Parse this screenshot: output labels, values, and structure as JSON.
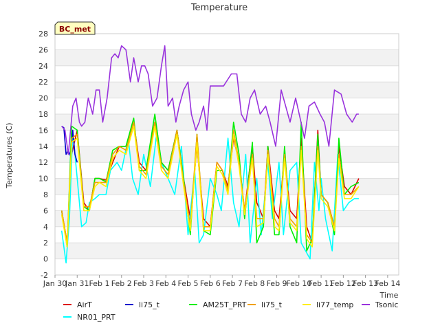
{
  "chart_data": {
    "type": "line",
    "title": "Temperature",
    "xlabel": "Time",
    "ylabel": "Temperatures (C)",
    "tag": "BC_met",
    "ylim": [
      -2,
      28
    ],
    "xlim": [
      0,
      15.5
    ],
    "x_ticks": [
      0,
      1,
      2,
      3,
      4,
      5,
      6,
      7,
      8,
      9,
      10,
      11,
      12,
      13,
      14,
      15
    ],
    "x_tick_labels": [
      "Jan 30",
      "Jan 31",
      "Feb 1",
      "Feb 2",
      "Feb 3",
      "Feb 4",
      "Feb 5",
      "Feb 6",
      "Feb 7",
      "Feb 8",
      "Feb 9",
      "Feb 10",
      "Feb 11",
      "Feb 12",
      "Feb 13",
      "Feb 14"
    ],
    "y_ticks": [
      -2,
      0,
      2,
      4,
      6,
      8,
      10,
      12,
      14,
      16,
      18,
      20,
      22,
      24,
      26,
      28
    ],
    "grid": "horizontal bands",
    "legend_position": "bottom",
    "series": [
      {
        "name": "AirT",
        "color": "#dd0000",
        "x": [
          0.3,
          0.55,
          0.75,
          1.0,
          1.3,
          1.55,
          1.8,
          2.0,
          2.3,
          2.6,
          2.9,
          3.2,
          3.55,
          3.8,
          4.1,
          4.5,
          4.8,
          5.1,
          5.5,
          5.8,
          6.1,
          6.4,
          6.7,
          7.0,
          7.3,
          7.55,
          7.8,
          8.05,
          8.3,
          8.55,
          8.9,
          9.1,
          9.4,
          9.6,
          9.9,
          10.1,
          10.35,
          10.6,
          10.9,
          11.1,
          11.35,
          11.6,
          11.85,
          12.0,
          12.3,
          12.6,
          12.8,
          13.05,
          13.35,
          13.7
        ],
        "y": [
          6,
          2,
          13,
          16,
          7,
          6,
          10,
          10,
          9.8,
          12,
          14,
          14,
          17,
          12,
          11,
          17,
          12,
          11,
          16,
          10,
          5,
          14,
          5,
          4,
          12,
          11,
          9,
          15,
          12,
          6,
          14,
          7,
          5,
          14,
          6,
          5,
          13,
          6,
          5,
          15,
          4,
          2,
          16,
          8,
          7,
          4,
          14,
          9,
          8,
          10
        ]
      },
      {
        "name": "NR01_PRT",
        "color": "#00ffff",
        "x": [
          0.3,
          0.5,
          0.65,
          0.8,
          1.0,
          1.2,
          1.4,
          1.55,
          1.8,
          2.0,
          2.3,
          2.5,
          2.8,
          3.0,
          3.3,
          3.5,
          3.75,
          4.0,
          4.3,
          4.6,
          4.8,
          5.1,
          5.4,
          5.7,
          6.0,
          6.3,
          6.5,
          6.7,
          7.0,
          7.3,
          7.5,
          7.8,
          8.05,
          8.3,
          8.6,
          8.8,
          9.1,
          9.3,
          9.6,
          9.8,
          10.1,
          10.3,
          10.6,
          10.9,
          11.1,
          11.3,
          11.5,
          11.7,
          11.9,
          12.0,
          12.2,
          12.5,
          12.75,
          13.0,
          13.25,
          13.5,
          13.7
        ],
        "y": [
          3.5,
          -0.5,
          5,
          16,
          10,
          4,
          4.5,
          7,
          7.5,
          8,
          8,
          11,
          12,
          11,
          15,
          10,
          8,
          13,
          9,
          16,
          12,
          10,
          8,
          14,
          3,
          11,
          2,
          3,
          10,
          8,
          6,
          15,
          7,
          4,
          13,
          2,
          10,
          3,
          12,
          5,
          12,
          3,
          11,
          12,
          2,
          1,
          0,
          12,
          6,
          10,
          5,
          1,
          13,
          6,
          7,
          7.5,
          7.5
        ]
      },
      {
        "name": "li75_t",
        "color": "#0000cc",
        "x": [
          0.3,
          0.4,
          0.5,
          0.6,
          0.7,
          0.8,
          0.9,
          1.0
        ],
        "y": [
          16.5,
          16.3,
          13,
          13.5,
          12.8,
          16,
          13,
          12
        ]
      },
      {
        "name": "AM25T_PRT",
        "color": "#00ee00",
        "x": [
          0.3,
          0.55,
          0.75,
          1.0,
          1.3,
          1.55,
          1.8,
          2.0,
          2.3,
          2.6,
          2.9,
          3.2,
          3.55,
          3.8,
          4.1,
          4.5,
          4.8,
          5.1,
          5.5,
          5.8,
          6.1,
          6.4,
          6.7,
          7.0,
          7.3,
          7.55,
          7.8,
          8.05,
          8.3,
          8.55,
          8.9,
          9.1,
          9.4,
          9.6,
          9.9,
          10.1,
          10.35,
          10.6,
          10.9,
          11.1,
          11.35,
          11.6,
          11.85,
          12.0,
          12.3,
          12.6,
          12.8,
          13.05,
          13.35,
          13.7
        ],
        "y": [
          6,
          1.5,
          16.5,
          16,
          6.5,
          6,
          10,
          10,
          9.6,
          13.5,
          14,
          14,
          17.5,
          11,
          11,
          18,
          12,
          11,
          16,
          10,
          3,
          15.5,
          3.5,
          3,
          11,
          11,
          8.5,
          17,
          13,
          5,
          14.5,
          2,
          4,
          14,
          3,
          3,
          14,
          4,
          2,
          17,
          1,
          2.5,
          15.5,
          8,
          7,
          3,
          15,
          8,
          9,
          9.5
        ]
      },
      {
        "name": "li75_t",
        "color": "#f0a000",
        "x": [
          0.3,
          0.55,
          0.75,
          1.0,
          1.3,
          1.55,
          1.8,
          2.0,
          2.3,
          2.6,
          2.9,
          3.2,
          3.55,
          3.8,
          4.1,
          4.5,
          4.8,
          5.1,
          5.5,
          5.8,
          6.1,
          6.4,
          6.7,
          7.0,
          7.3,
          7.55,
          7.8,
          8.05,
          8.3,
          8.55,
          8.9,
          9.1,
          9.4,
          9.6,
          9.9,
          10.1,
          10.35,
          10.6,
          10.9,
          11.1,
          11.35,
          11.6,
          11.85,
          12.0,
          12.3,
          12.6,
          12.8,
          13.05,
          13.35,
          13.7
        ],
        "y": [
          6,
          2,
          15,
          15.5,
          6.5,
          6.5,
          9.5,
          9.5,
          9.5,
          13,
          14,
          13.5,
          17,
          11.5,
          10.5,
          17,
          11.5,
          10.5,
          16,
          9.5,
          4,
          15.5,
          4,
          4,
          12,
          11,
          8.5,
          16,
          12,
          6,
          13,
          5,
          5,
          13.5,
          5,
          4,
          13,
          5,
          4,
          14,
          3,
          2,
          14,
          8,
          7,
          4,
          13,
          8,
          8,
          9
        ]
      },
      {
        "name": "li77_temp",
        "color": "#ffee00",
        "x": [
          0.3,
          0.55,
          0.75,
          1.0,
          1.3,
          1.55,
          1.8,
          2.0,
          2.3,
          2.6,
          2.9,
          3.2,
          3.55,
          3.8,
          4.1,
          4.5,
          4.8,
          5.1,
          5.5,
          5.8,
          6.1,
          6.4,
          6.7,
          7.0,
          7.3,
          7.55,
          7.8,
          8.05,
          8.3,
          8.55,
          8.9,
          9.1,
          9.4,
          9.6,
          9.9,
          10.1,
          10.35,
          10.6,
          10.9,
          11.1,
          11.35,
          11.6,
          11.85,
          12.0,
          12.3,
          12.6,
          12.8,
          13.05,
          13.35,
          13.7
        ],
        "y": [
          5.5,
          1.5,
          14.5,
          15,
          6,
          6,
          9,
          9.5,
          9,
          12.5,
          13.5,
          13,
          16.5,
          11,
          10,
          16.5,
          11,
          10,
          15.5,
          9,
          3.5,
          14.5,
          3.5,
          3.5,
          11.5,
          10.5,
          8,
          15.5,
          11.5,
          5.5,
          12.5,
          4,
          4.5,
          13,
          4,
          3.5,
          12.5,
          4.5,
          3.5,
          13.5,
          2.5,
          1.5,
          13.5,
          7.5,
          6.5,
          3.5,
          12.5,
          7.5,
          7.5,
          9
        ]
      },
      {
        "name": "Tsonic",
        "color": "#9933dd",
        "x": [
          0.3,
          0.45,
          0.6,
          0.8,
          0.95,
          1.1,
          1.2,
          1.35,
          1.5,
          1.7,
          1.85,
          2.0,
          2.15,
          2.35,
          2.55,
          2.7,
          2.85,
          3.0,
          3.2,
          3.4,
          3.55,
          3.75,
          3.9,
          4.05,
          4.2,
          4.4,
          4.6,
          4.8,
          4.95,
          5.1,
          5.3,
          5.45,
          5.6,
          5.8,
          6.0,
          6.15,
          6.35,
          6.5,
          6.7,
          6.85,
          7.0,
          7.3,
          7.6,
          7.95,
          8.2,
          8.4,
          8.6,
          8.8,
          9.0,
          9.25,
          9.5,
          9.7,
          9.95,
          10.2,
          10.4,
          10.6,
          10.85,
          11.05,
          11.25,
          11.45,
          11.7,
          11.95,
          12.15,
          12.35,
          12.6,
          12.9,
          13.15,
          13.4,
          13.6,
          13.7
        ],
        "y": [
          16.5,
          16,
          13,
          19,
          20,
          17,
          16.5,
          17,
          20,
          18,
          21,
          21,
          17,
          20,
          25,
          25.5,
          25,
          26.5,
          26,
          22,
          25,
          22,
          24,
          24,
          23,
          19,
          20,
          24,
          26.5,
          19,
          20,
          17,
          19,
          21,
          22,
          18,
          16,
          17,
          19,
          16,
          21.5,
          21.5,
          21.5,
          23,
          23,
          18,
          17,
          20,
          21,
          18,
          19,
          17,
          14,
          21,
          19,
          17,
          20,
          17.5,
          15,
          19,
          19.5,
          18,
          17,
          14,
          21,
          20.5,
          18,
          17,
          18,
          18
        ]
      }
    ]
  }
}
